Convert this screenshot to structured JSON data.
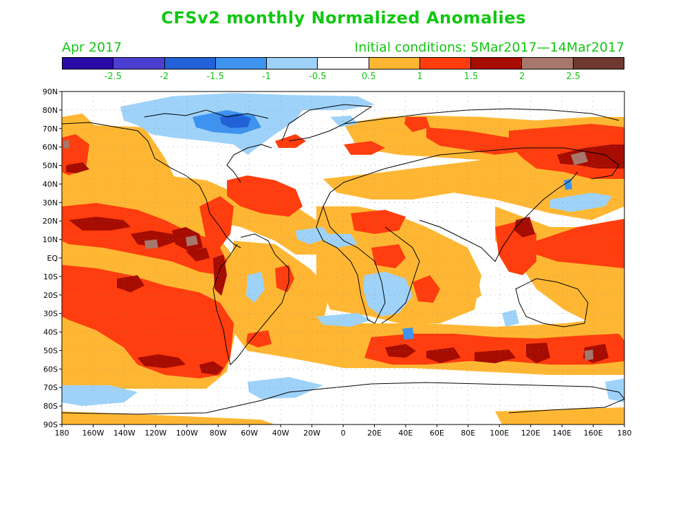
{
  "title": "CFSv2 monthly Normalized Anomalies",
  "subtitle_left": "Apr 2017",
  "subtitle_right": "Initial conditions: 5Mar2017—14Mar2017",
  "colorbar": {
    "colors": [
      "#2a0ba8",
      "#4b3fd1",
      "#2162d8",
      "#3e93ee",
      "#9ed2f9",
      "#ffffff",
      "#ffb733",
      "#ff3d0e",
      "#a60c00",
      "#a8776c",
      "#6e3a2f"
    ],
    "labels": [
      "-2.5",
      "-2",
      "-1.5",
      "-1",
      "-0.5",
      "0.5",
      "1",
      "1.5",
      "2",
      "2.5"
    ]
  },
  "map": {
    "lat_labels": [
      "90N",
      "80N",
      "70N",
      "60N",
      "50N",
      "40N",
      "30N",
      "20N",
      "10N",
      "EQ",
      "10S",
      "20S",
      "30S",
      "40S",
      "50S",
      "60S",
      "70S",
      "80S",
      "90S"
    ],
    "lon_labels": [
      "180",
      "160W",
      "140W",
      "120W",
      "100W",
      "80W",
      "60W",
      "40W",
      "20W",
      "0",
      "20E",
      "40E",
      "60E",
      "80E",
      "100E",
      "120E",
      "140E",
      "160E",
      "180"
    ],
    "colors": {
      "pos05": "#ffb733",
      "pos1": "#ff3d0e",
      "pos15": "#a60c00",
      "pos2": "#a8776c",
      "neg05": "#9ed2f9",
      "neg1": "#3e93ee",
      "neg15": "#2162d8"
    }
  }
}
